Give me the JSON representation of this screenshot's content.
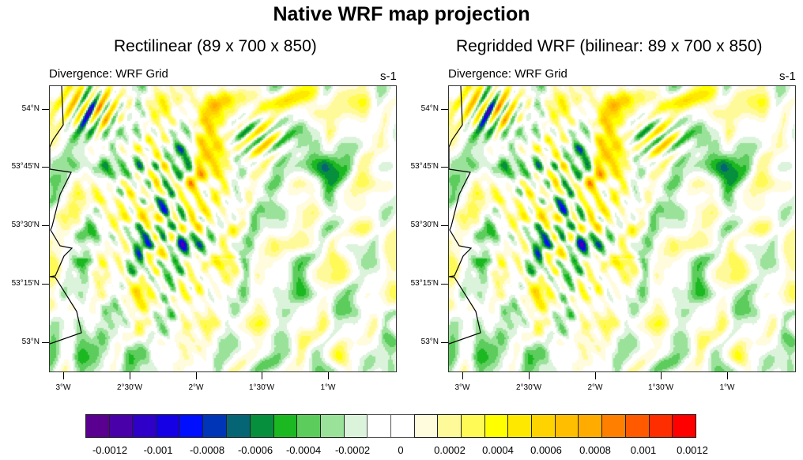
{
  "title": "Native WRF map projection",
  "panels": [
    {
      "id": "rectilinear",
      "title": "Rectilinear (89 x 700 x 850)",
      "left_string": "Divergence: WRF Grid",
      "right_string": "s-1"
    },
    {
      "id": "regridded",
      "title": "Regridded WRF (bilinear: 89 x 700 x 850)",
      "left_string": "Divergence: WRF Grid",
      "right_string": "s-1"
    }
  ],
  "axes": {
    "y_ticks": [
      {
        "value": 54.0,
        "label": "54°N"
      },
      {
        "value": 53.75,
        "label": "53°45'N"
      },
      {
        "value": 53.5,
        "label": "53°30'N"
      },
      {
        "value": 53.25,
        "label": "53°15'N"
      },
      {
        "value": 53.0,
        "label": "53°N"
      }
    ],
    "x_ticks": [
      {
        "value": -3.0,
        "label": "3°W"
      },
      {
        "value": -2.5,
        "label": "2°30'W"
      },
      {
        "value": -2.0,
        "label": "2°W"
      },
      {
        "value": -1.5,
        "label": "1°30'W"
      },
      {
        "value": -1.0,
        "label": "1°W"
      }
    ],
    "lon_range": [
      -3.11,
      -0.48
    ],
    "lat_range": [
      52.87,
      54.1
    ]
  },
  "colorbar": {
    "colors": [
      "#5a0090",
      "#4a00a8",
      "#2e00c8",
      "#1500e6",
      "#0010ff",
      "#0035b8",
      "#066575",
      "#068f3c",
      "#1bb821",
      "#5ccc5c",
      "#9ae29a",
      "#dbf3db",
      "#ffffff",
      "#ffffff",
      "#fffbdd",
      "#fffa99",
      "#fffa55",
      "#ffff00",
      "#ffe800",
      "#ffd300",
      "#ffbf00",
      "#ffab00",
      "#ff8000",
      "#ff5a00",
      "#ff2e00",
      "#ff0000"
    ],
    "labels": [
      "-0.0012",
      "-0.001",
      "-0.0008",
      "-0.0006",
      "-0.0004",
      "-0.0002",
      "0",
      "0.0002",
      "0.0004",
      "0.0006",
      "0.0008",
      "0.001",
      "0.0012"
    ],
    "label_values": [
      -0.0012,
      -0.001,
      -0.0008,
      -0.0006,
      -0.0004,
      -0.0002,
      0,
      0.0002,
      0.0004,
      0.0006,
      0.0008,
      0.001,
      0.0012
    ]
  },
  "colors": {
    "coastline": "#000000",
    "frame": "#333333"
  }
}
